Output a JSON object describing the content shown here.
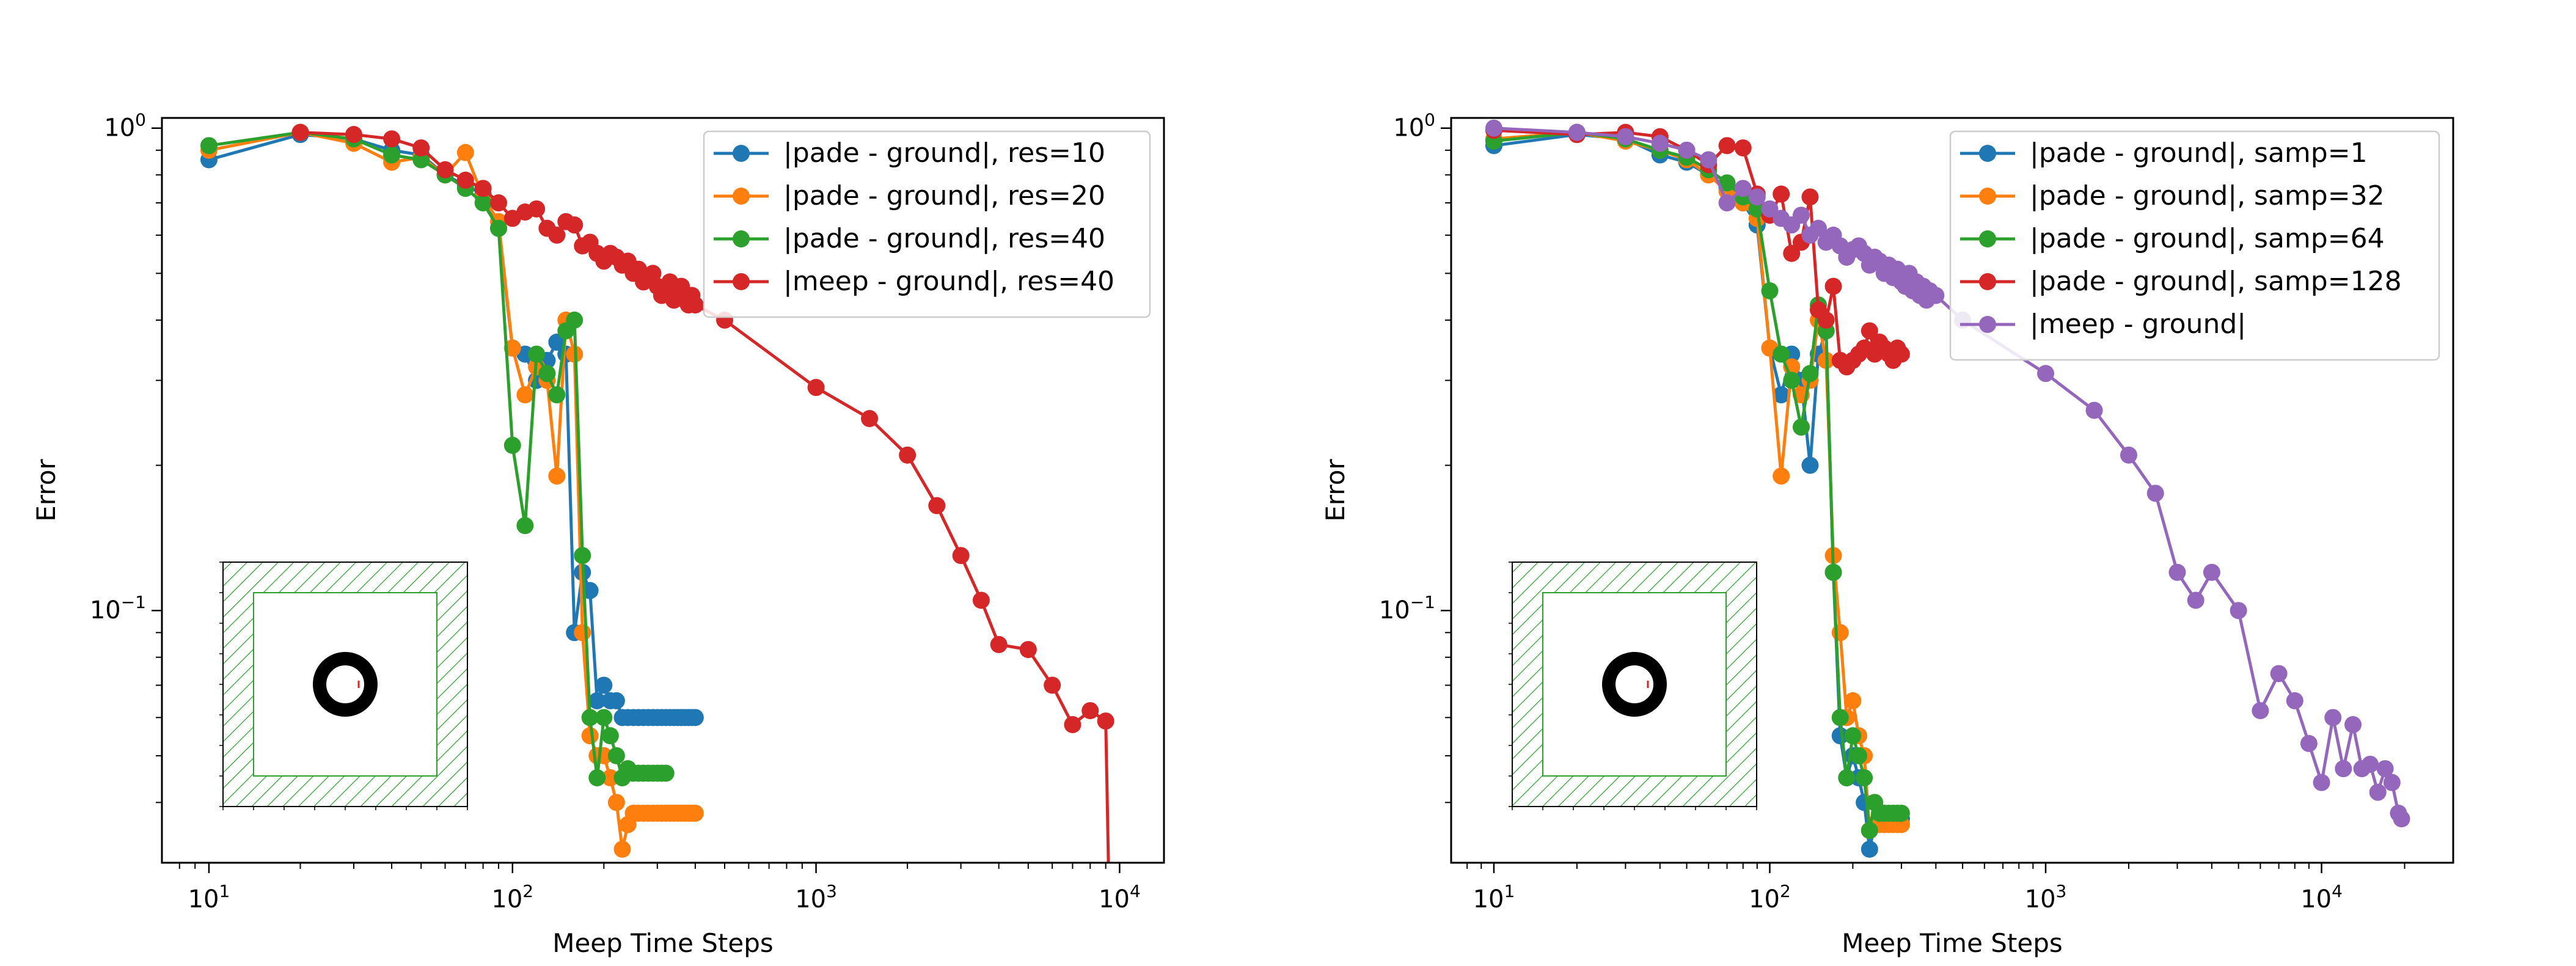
{
  "chart_data": [
    {
      "type": "line",
      "xscale": "log",
      "yscale": "log",
      "xlim": [
        7,
        14000
      ],
      "ylim": [
        0.03,
        1.05
      ],
      "xlabel": "Meep Time Steps",
      "ylabel": "Error",
      "xticks": [
        {
          "v": 10,
          "base": "10",
          "exp": "1"
        },
        {
          "v": 100,
          "base": "10",
          "exp": "2"
        },
        {
          "v": 1000,
          "base": "10",
          "exp": "3"
        },
        {
          "v": 10000,
          "base": "10",
          "exp": "4"
        }
      ],
      "yticks": [
        {
          "v": 1,
          "base": "10",
          "exp": "0"
        },
        {
          "v": 0.1,
          "base": "10",
          "exp": "−1"
        }
      ],
      "legend_placement": "upper right",
      "series": [
        {
          "name": "|pade - ground|, res=10",
          "color": "#1f77b4",
          "x": [
            10,
            20,
            30,
            40,
            50,
            60,
            70,
            80,
            90,
            100,
            110,
            120,
            130,
            140,
            150,
            160,
            170,
            180,
            190,
            200,
            210,
            220,
            230,
            240,
            250,
            260,
            270,
            280,
            290,
            300,
            310,
            320,
            330,
            340,
            350,
            360,
            370,
            380,
            390,
            400
          ],
          "y": [
            0.86,
            0.97,
            0.95,
            0.9,
            0.88,
            0.8,
            0.76,
            0.73,
            0.62,
            0.35,
            0.34,
            0.3,
            0.33,
            0.36,
            0.34,
            0.09,
            0.12,
            0.11,
            0.065,
            0.07,
            0.065,
            0.065,
            0.06,
            0.06,
            0.06,
            0.06,
            0.06,
            0.06,
            0.06,
            0.06,
            0.06,
            0.06,
            0.06,
            0.06,
            0.06,
            0.06,
            0.06,
            0.06,
            0.06,
            0.06
          ]
        },
        {
          "name": "|pade - ground|, res=20",
          "color": "#ff7f0e",
          "x": [
            10,
            20,
            30,
            40,
            50,
            60,
            70,
            80,
            90,
            100,
            110,
            120,
            130,
            140,
            150,
            160,
            170,
            180,
            190,
            200,
            210,
            220,
            230,
            240,
            250,
            260,
            270,
            280,
            290,
            300,
            310,
            320,
            330,
            340,
            350,
            360,
            370,
            380,
            390,
            400
          ],
          "y": [
            0.9,
            0.98,
            0.93,
            0.85,
            0.87,
            0.8,
            0.89,
            0.72,
            0.64,
            0.35,
            0.28,
            0.32,
            0.3,
            0.19,
            0.4,
            0.34,
            0.09,
            0.055,
            0.05,
            0.05,
            0.045,
            0.04,
            0.032,
            0.036,
            0.038,
            0.038,
            0.038,
            0.038,
            0.038,
            0.038,
            0.038,
            0.038,
            0.038,
            0.038,
            0.038,
            0.038,
            0.038,
            0.038,
            0.038,
            0.038
          ]
        },
        {
          "name": "|pade - ground|, res=40",
          "color": "#2ca02c",
          "x": [
            10,
            20,
            30,
            40,
            50,
            60,
            70,
            80,
            90,
            100,
            110,
            120,
            130,
            140,
            150,
            160,
            170,
            180,
            190,
            200,
            210,
            220,
            230,
            240,
            250,
            260,
            270,
            280,
            290,
            300,
            310,
            320
          ],
          "y": [
            0.92,
            0.98,
            0.95,
            0.88,
            0.86,
            0.8,
            0.75,
            0.7,
            0.62,
            0.22,
            0.15,
            0.34,
            0.31,
            0.28,
            0.38,
            0.4,
            0.13,
            0.06,
            0.045,
            0.06,
            0.055,
            0.05,
            0.045,
            0.047,
            0.046,
            0.046,
            0.046,
            0.046,
            0.046,
            0.046,
            0.046,
            0.046
          ]
        },
        {
          "name": "|meep - ground|, res=40",
          "color": "#d62728",
          "x": [
            20,
            30,
            40,
            50,
            60,
            70,
            80,
            90,
            100,
            110,
            120,
            130,
            140,
            150,
            160,
            170,
            180,
            190,
            200,
            210,
            220,
            230,
            240,
            250,
            260,
            270,
            280,
            290,
            300,
            310,
            320,
            330,
            340,
            350,
            360,
            370,
            380,
            390,
            400,
            500,
            1000,
            1500,
            2000,
            2500,
            3000,
            3500,
            4000,
            5000,
            6000,
            7000,
            8000,
            9000,
            9300
          ],
          "y": [
            0.98,
            0.97,
            0.95,
            0.91,
            0.82,
            0.78,
            0.75,
            0.7,
            0.65,
            0.67,
            0.68,
            0.62,
            0.6,
            0.64,
            0.63,
            0.57,
            0.58,
            0.55,
            0.53,
            0.55,
            0.54,
            0.52,
            0.53,
            0.5,
            0.51,
            0.48,
            0.49,
            0.5,
            0.47,
            0.45,
            0.46,
            0.48,
            0.44,
            0.45,
            0.47,
            0.44,
            0.43,
            0.45,
            0.43,
            0.4,
            0.29,
            0.25,
            0.21,
            0.165,
            0.13,
            0.105,
            0.085,
            0.083,
            0.07,
            0.058,
            0.062,
            0.059,
            0.02
          ]
        }
      ]
    },
    {
      "type": "line",
      "xscale": "log",
      "yscale": "log",
      "xlim": [
        7,
        30000
      ],
      "ylim": [
        0.03,
        1.05
      ],
      "xlabel": "Meep Time Steps",
      "ylabel": "Error",
      "xticks": [
        {
          "v": 10,
          "base": "10",
          "exp": "1"
        },
        {
          "v": 100,
          "base": "10",
          "exp": "2"
        },
        {
          "v": 1000,
          "base": "10",
          "exp": "3"
        },
        {
          "v": 10000,
          "base": "10",
          "exp": "4"
        }
      ],
      "yticks": [
        {
          "v": 1,
          "base": "10",
          "exp": "0"
        },
        {
          "v": 0.1,
          "base": "10",
          "exp": "−1"
        }
      ],
      "legend_placement": "upper right",
      "series": [
        {
          "name": "|pade - ground|, samp=1",
          "color": "#1f77b4",
          "x": [
            10,
            20,
            30,
            40,
            50,
            60,
            70,
            80,
            90,
            100,
            110,
            120,
            130,
            140,
            150,
            160,
            170,
            180,
            190,
            200,
            210,
            220,
            230,
            240,
            250,
            260,
            270,
            280,
            290,
            300
          ],
          "y": [
            0.92,
            0.97,
            0.95,
            0.88,
            0.85,
            0.8,
            0.75,
            0.7,
            0.63,
            0.35,
            0.28,
            0.34,
            0.3,
            0.2,
            0.34,
            0.38,
            0.12,
            0.055,
            0.045,
            0.05,
            0.045,
            0.04,
            0.032,
            0.036,
            0.038,
            0.037,
            0.037,
            0.037,
            0.037,
            0.037
          ]
        },
        {
          "name": "|pade - ground|, samp=32",
          "color": "#ff7f0e",
          "x": [
            10,
            20,
            30,
            40,
            50,
            60,
            70,
            80,
            90,
            100,
            110,
            120,
            130,
            140,
            150,
            160,
            170,
            180,
            190,
            200,
            210,
            220,
            230,
            240,
            250,
            260,
            270,
            280,
            290,
            300
          ],
          "y": [
            0.95,
            0.98,
            0.94,
            0.9,
            0.86,
            0.8,
            0.74,
            0.7,
            0.65,
            0.35,
            0.19,
            0.32,
            0.28,
            0.3,
            0.4,
            0.33,
            0.13,
            0.09,
            0.06,
            0.065,
            0.055,
            0.05,
            0.035,
            0.04,
            0.036,
            0.036,
            0.036,
            0.036,
            0.036,
            0.036
          ]
        },
        {
          "name": "|pade - ground|, samp=64",
          "color": "#2ca02c",
          "x": [
            10,
            20,
            30,
            40,
            50,
            60,
            70,
            80,
            90,
            100,
            110,
            120,
            130,
            140,
            150,
            160,
            170,
            180,
            190,
            200,
            210,
            220,
            230,
            240,
            250,
            260,
            270,
            280,
            290,
            300
          ],
          "y": [
            0.94,
            0.98,
            0.95,
            0.9,
            0.87,
            0.82,
            0.77,
            0.72,
            0.68,
            0.46,
            0.34,
            0.3,
            0.24,
            0.31,
            0.43,
            0.38,
            0.12,
            0.06,
            0.045,
            0.055,
            0.05,
            0.045,
            0.035,
            0.04,
            0.038,
            0.038,
            0.038,
            0.038,
            0.038,
            0.038
          ]
        },
        {
          "name": "|pade - ground|, samp=128",
          "color": "#d62728",
          "x": [
            10,
            20,
            30,
            40,
            50,
            60,
            70,
            80,
            90,
            100,
            110,
            120,
            130,
            140,
            150,
            160,
            170,
            180,
            190,
            200,
            210,
            220,
            230,
            240,
            250,
            260,
            270,
            280,
            290,
            300
          ],
          "y": [
            0.99,
            0.97,
            0.98,
            0.96,
            0.9,
            0.84,
            0.92,
            0.91,
            0.73,
            0.66,
            0.73,
            0.55,
            0.58,
            0.72,
            0.42,
            0.4,
            0.47,
            0.33,
            0.32,
            0.33,
            0.34,
            0.35,
            0.38,
            0.34,
            0.36,
            0.35,
            0.34,
            0.33,
            0.35,
            0.34
          ]
        },
        {
          "name": "|meep - ground|",
          "color": "#9467bd",
          "x": [
            10,
            20,
            30,
            40,
            50,
            60,
            70,
            80,
            90,
            100,
            110,
            120,
            130,
            140,
            150,
            160,
            170,
            180,
            190,
            200,
            210,
            220,
            230,
            240,
            250,
            260,
            270,
            280,
            290,
            300,
            310,
            320,
            330,
            340,
            350,
            360,
            370,
            380,
            390,
            400,
            500,
            1000,
            1500,
            2000,
            2500,
            3000,
            3500,
            4000,
            5000,
            6000,
            7000,
            8000,
            9000,
            10000,
            11000,
            12000,
            13000,
            14000,
            15000,
            16000,
            17000,
            18000,
            19000,
            19500
          ],
          "y": [
            1.0,
            0.98,
            0.96,
            0.93,
            0.9,
            0.86,
            0.7,
            0.75,
            0.72,
            0.68,
            0.65,
            0.63,
            0.66,
            0.6,
            0.62,
            0.58,
            0.6,
            0.57,
            0.54,
            0.56,
            0.57,
            0.55,
            0.52,
            0.54,
            0.53,
            0.5,
            0.52,
            0.49,
            0.51,
            0.48,
            0.47,
            0.5,
            0.46,
            0.48,
            0.45,
            0.47,
            0.44,
            0.46,
            0.45,
            0.45,
            0.4,
            0.31,
            0.26,
            0.21,
            0.175,
            0.12,
            0.105,
            0.12,
            0.1,
            0.062,
            0.074,
            0.065,
            0.053,
            0.044,
            0.06,
            0.047,
            0.058,
            0.047,
            0.048,
            0.042,
            0.047,
            0.044,
            0.038,
            0.037
          ]
        }
      ]
    }
  ]
}
